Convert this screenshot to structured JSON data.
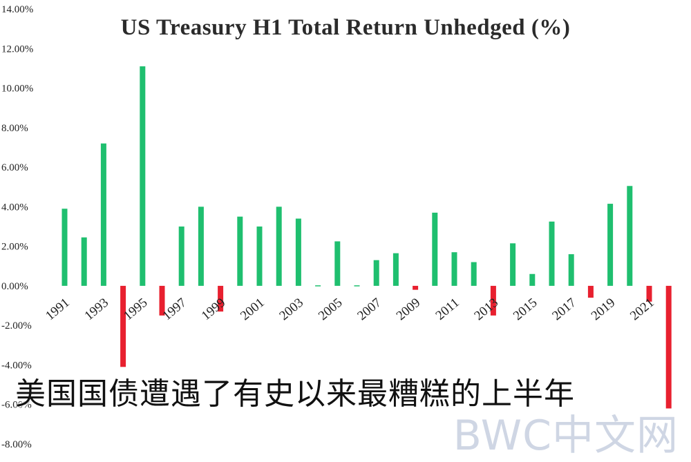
{
  "chart_data": {
    "type": "bar",
    "title": "US Treasury H1 Total Return Unhedged (%)",
    "xlabel": "",
    "ylabel": "",
    "ylim": [
      -8,
      14
    ],
    "yticks": [
      "14.00%",
      "12.00%",
      "10.00%",
      "8.00%",
      "6.00%",
      "4.00%",
      "2.00%",
      "0.00%",
      "-2.00%",
      "-4.00%",
      "-6.00%",
      "-8.00%"
    ],
    "ytick_values": [
      14,
      12,
      10,
      8,
      6,
      4,
      2,
      0,
      -2,
      -4,
      -6,
      -8
    ],
    "xtick_labels": [
      "1991",
      "1993",
      "1995",
      "1997",
      "1999",
      "2001",
      "2003",
      "2005",
      "2007",
      "2009",
      "2011",
      "2013",
      "2015",
      "2017",
      "2019",
      "2021"
    ],
    "categories": [
      "1991",
      "1992",
      "1993",
      "1994",
      "1995",
      "1996",
      "1997",
      "1998",
      "1999",
      "2000",
      "2001",
      "2002",
      "2003",
      "2004",
      "2005",
      "2006",
      "2007",
      "2008",
      "2009",
      "2010",
      "2011",
      "2012",
      "2013",
      "2014",
      "2015",
      "2016",
      "2017",
      "2018",
      "2019",
      "2020",
      "2021",
      "2022"
    ],
    "values": [
      3.9,
      2.45,
      7.2,
      -4.1,
      11.1,
      -1.5,
      3.0,
      4.0,
      -1.3,
      3.5,
      3.0,
      4.0,
      3.4,
      0.0,
      2.25,
      0.0,
      1.3,
      1.65,
      -0.2,
      3.7,
      1.7,
      1.2,
      -1.5,
      2.15,
      0.6,
      3.25,
      1.6,
      -0.6,
      4.15,
      5.05,
      -0.8,
      -6.2
    ],
    "colors": {
      "positive": "#1fbf6f",
      "negative": "#e8202f"
    },
    "grid": false,
    "legend": "none"
  },
  "overlay": {
    "caption": "美国国债遭遇了有史以来最糟糕的上半年",
    "watermark": "BWC中文网"
  }
}
